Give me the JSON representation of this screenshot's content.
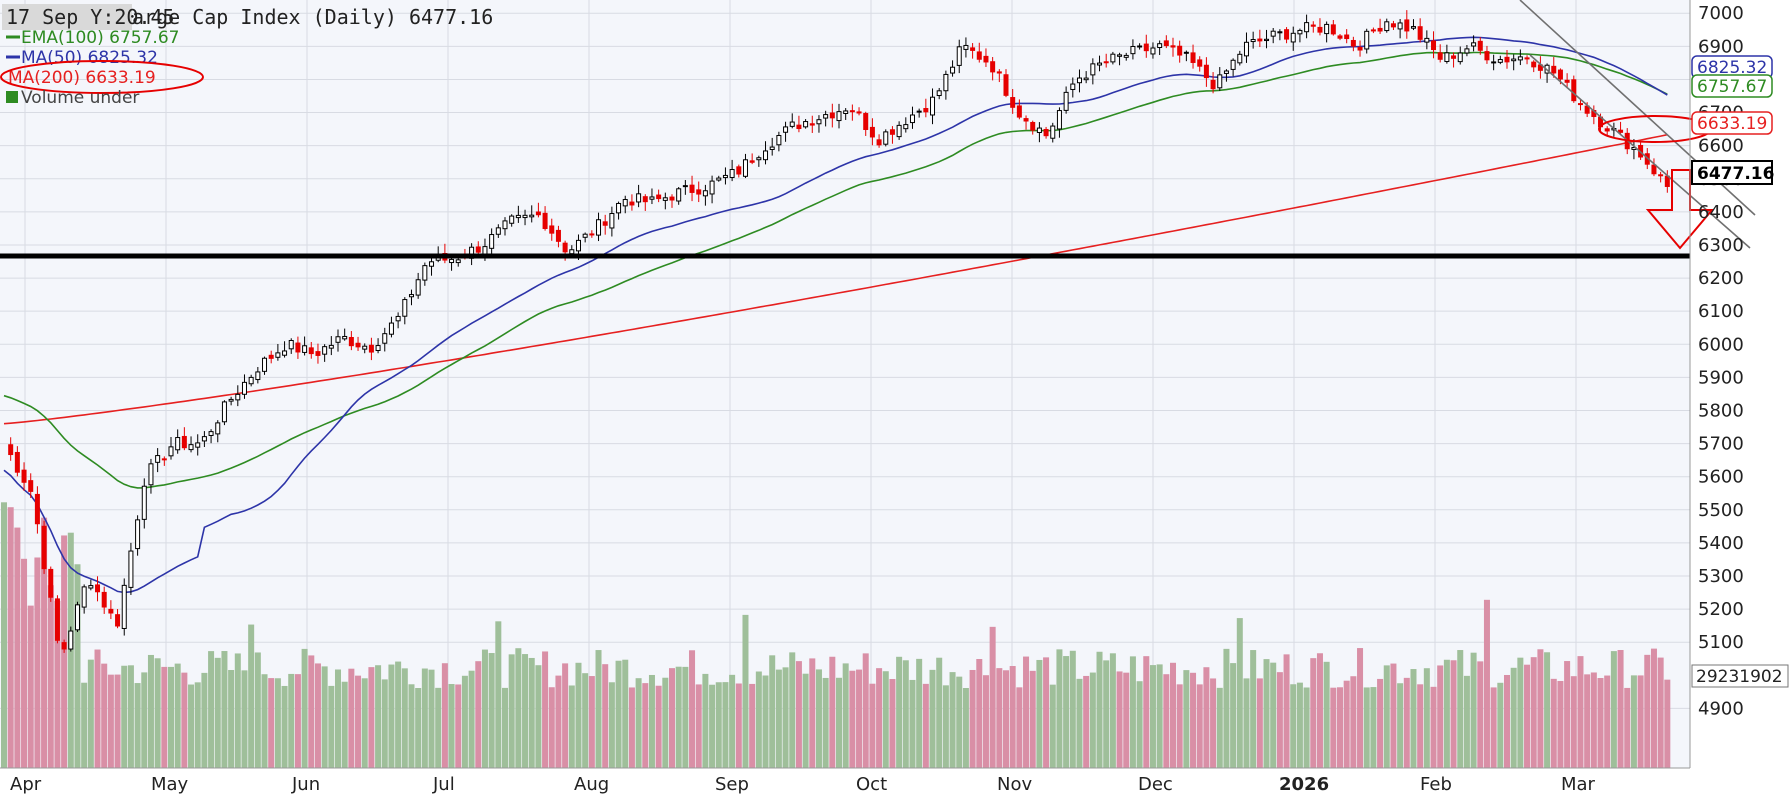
{
  "header": {
    "date_tag": "17 Sep Y:20.45",
    "title_visible": "arge Cap Index (Daily) 6477.16"
  },
  "legend": {
    "ema100": "EMA(100) 6757.67",
    "ma50": "MA(50) 6825.32",
    "ma200": "MA(200) 6633.19",
    "volume": "Volume under"
  },
  "colors": {
    "up_candle": "#000000",
    "down_candle": "#e60000",
    "ema100": "#2e8b22",
    "ma50": "#2d34a8",
    "ma200": "#e62020",
    "volume_up": "#9fbf9a",
    "volume_down": "#d98fa6",
    "support_line": "#000000",
    "channel": "#707070",
    "annotation": "#e60000"
  },
  "chart_data": {
    "type": "candlestick",
    "title": "arge Cap Index (Daily) 6477.16",
    "y_axis": {
      "ylim": [
        4720,
        7040
      ],
      "ticks": [
        "4900",
        "5100",
        "5200",
        "5300",
        "5400",
        "5500",
        "5600",
        "5700",
        "5800",
        "5900",
        "6000",
        "6100",
        "6200",
        "6300",
        "6400",
        "6500",
        "6600",
        "6700",
        "6800",
        "6900",
        "7000"
      ]
    },
    "x_axis": {
      "labels": [
        "Apr",
        "May",
        "Jun",
        "Jul",
        "Aug",
        "Sep",
        "Oct",
        "Nov",
        "Dec",
        "2026",
        "Feb",
        "Mar"
      ],
      "bold": [
        "2026"
      ]
    },
    "price_path": [
      [
        "Apr",
        5700
      ],
      [
        "Apr",
        5550
      ],
      [
        "Apr",
        5050
      ],
      [
        "Apr",
        5300
      ],
      [
        "Apr",
        5150
      ],
      [
        "May",
        5600
      ],
      [
        "May",
        5700
      ],
      [
        "May",
        5700
      ],
      [
        "May",
        5830
      ],
      [
        "May",
        5930
      ],
      [
        "Jun",
        6000
      ],
      [
        "Jun",
        5970
      ],
      [
        "Jun",
        6020
      ],
      [
        "Jun",
        5990
      ],
      [
        "Jun",
        6080
      ],
      [
        "Jul",
        6250
      ],
      [
        "Jul",
        6260
      ],
      [
        "Jul",
        6300
      ],
      [
        "Jul",
        6370
      ],
      [
        "Jul",
        6390
      ],
      [
        "Aug",
        6280
      ],
      [
        "Aug",
        6350
      ],
      [
        "Aug",
        6440
      ],
      [
        "Aug",
        6430
      ],
      [
        "Aug",
        6460
      ],
      [
        "Sep",
        6480
      ],
      [
        "Sep",
        6520
      ],
      [
        "Sep",
        6600
      ],
      [
        "Sep",
        6660
      ],
      [
        "Sep",
        6690
      ],
      [
        "Oct",
        6720
      ],
      [
        "Oct",
        6620
      ],
      [
        "Oct",
        6680
      ],
      [
        "Oct",
        6740
      ],
      [
        "Oct",
        6900
      ],
      [
        "Nov",
        6850
      ],
      [
        "Nov",
        6700
      ],
      [
        "Nov",
        6630
      ],
      [
        "Nov",
        6800
      ],
      [
        "Nov",
        6850
      ],
      [
        "Dec",
        6880
      ],
      [
        "Dec",
        6900
      ],
      [
        "Dec",
        6860
      ],
      [
        "Dec",
        6780
      ],
      [
        "Dec",
        6900
      ],
      [
        "2026",
        6930
      ],
      [
        "2026",
        6950
      ],
      [
        "2026",
        6960
      ],
      [
        "2026",
        6900
      ],
      [
        "2026",
        6980
      ],
      [
        "Feb",
        6950
      ],
      [
        "Feb",
        6860
      ],
      [
        "Feb",
        6900
      ],
      [
        "Feb",
        6860
      ],
      [
        "Feb",
        6870
      ],
      [
        "Mar",
        6820
      ],
      [
        "Mar",
        6720
      ],
      [
        "Mar",
        6650
      ],
      [
        "Mar",
        6580
      ],
      [
        "Mar",
        6477
      ]
    ],
    "annotations": {
      "support_level": 6200,
      "price_tag": "6477.16",
      "ma50_tag": "6825.32",
      "ema100_tag": "6757.67",
      "ma200_tag": "6633.19",
      "volume_tag": "29231902"
    },
    "grid": true,
    "legend_position": "top-left"
  }
}
